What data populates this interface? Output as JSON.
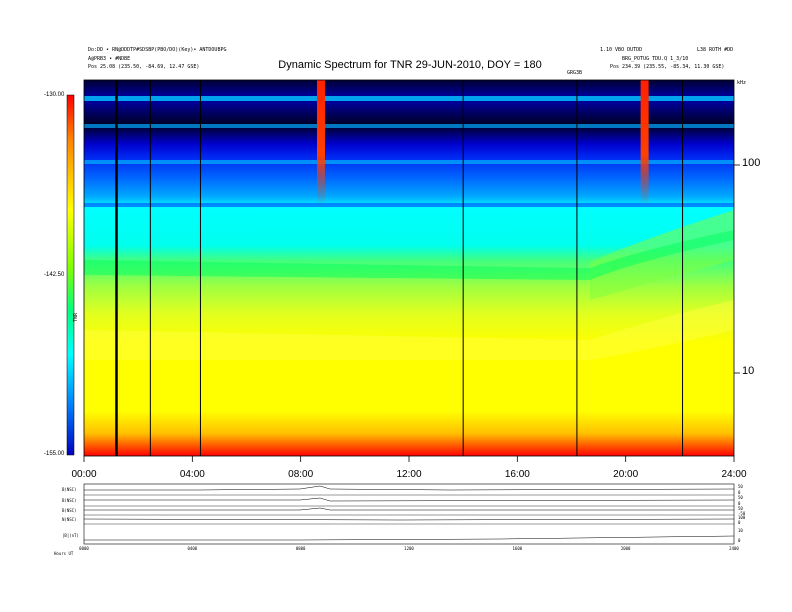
{
  "header": {
    "left_line1": "Do:DD • RN@DDDTP#SDSBP(PBO/DO)(Key)• ANTDOUBPG",
    "left_line2": "A@PRB3 • #NDBE",
    "left_line3": "Pos    25.08 (235.50, -84.69, 12.47 GSE)",
    "right_line1": "1.10 VBO DUTDD",
    "right_line1b": "L38 ROTH #DD",
    "right_line2": "BRG_POTUG  TDU.Q 1_3/10",
    "right_line3": "Pos    234.39 (235.55, -85.34, 11.30 GSE)",
    "right_line4": "GRG3B"
  },
  "chart_data": {
    "type": "heatmap",
    "title": "Dynamic Spectrum for TNR 29-JUN-2010, DOY = 180",
    "x_ticks": [
      "00:00",
      "04:00",
      "08:00",
      "12:00",
      "16:00",
      "20:00",
      "24:00"
    ],
    "x_range_hours": [
      0,
      24
    ],
    "y_ticks": [
      "100",
      "10"
    ],
    "y_unit": "kHz",
    "y_scale": "log",
    "colorbar": {
      "ticks": [
        "-130.00",
        "-142.50",
        "-155.00"
      ],
      "range": [
        -155,
        -130
      ],
      "label": "TNR",
      "colors": [
        "#000080",
        "#0000ff",
        "#00aaff",
        "#00ffff",
        "#00ff80",
        "#80ff00",
        "#ffff00",
        "#ff8000",
        "#ff0000",
        "#800000"
      ]
    },
    "data_gap_lines_hours": [
      1.2,
      2.45,
      4.3,
      14.0,
      18.2,
      22.1
    ],
    "bursts_hours": [
      8.75,
      20.7
    ]
  },
  "bottom_panels": {
    "labels": [
      "B(NSC)",
      "B(NSC)",
      "B(NSC)",
      "N(NSC)",
      "|B|(nT)"
    ],
    "right_ticks": [
      [
        "50",
        "0"
      ],
      [
        "50",
        "0"
      ],
      [
        "50",
        "-50"
      ],
      [
        "100",
        "0"
      ],
      [
        "10",
        "0"
      ]
    ],
    "x_ticks": [
      "0000",
      "0400",
      "0800",
      "1200",
      "1600",
      "2000",
      "2400"
    ],
    "footer_label": "Hours  UT"
  }
}
